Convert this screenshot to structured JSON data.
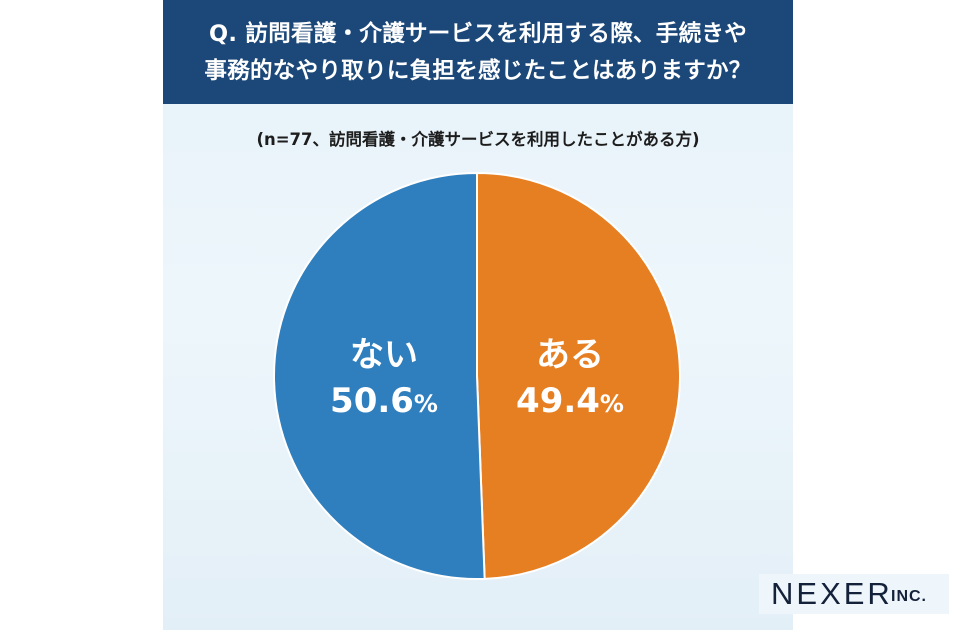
{
  "chart_data": {
    "type": "pie",
    "title": "Q. 訪問看護・介護サービスを利用する際、手続きや事務的なやり取りに負担を感じたことはありますか？",
    "title_lines": [
      "Q. 訪問看護・介護サービスを利用する際、手続きや",
      "事務的なやり取りに負担を感じたことはありますか？"
    ],
    "subtitle": "(n=77、訪問看護・介護サービスを利用したことがある方)",
    "slices": [
      {
        "label": "ある",
        "value": 49.4,
        "display": "49.4",
        "color": "#e67e22"
      },
      {
        "label": "ない",
        "value": 50.6,
        "display": "50.6",
        "color": "#2f7ebd"
      }
    ],
    "unit": "%",
    "start": "top",
    "direction": "clockwise"
  },
  "brand": {
    "name": "NEXER",
    "suffix": "INC."
  }
}
